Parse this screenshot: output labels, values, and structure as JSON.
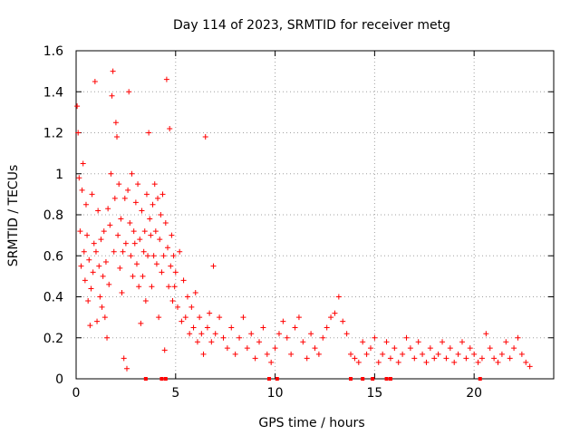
{
  "chart_data": {
    "type": "scatter",
    "title": "Day 114 of 2023, SRMTID for receiver metg",
    "xlabel": "GPS time / hours",
    "ylabel": "SRMTID / TECUs",
    "xlim": [
      0,
      24
    ],
    "ylim": [
      0,
      1.6
    ],
    "grid": true,
    "marker": "+",
    "marker_color": "#ff0000",
    "x_ticks": [
      0,
      5,
      10,
      15,
      20
    ],
    "x_tick_labels": [
      "0",
      "5",
      "10",
      "15",
      "20"
    ],
    "y_ticks": [
      0,
      0.2,
      0.4,
      0.6,
      0.8,
      1.0,
      1.2,
      1.4,
      1.6
    ],
    "y_tick_labels": [
      "0",
      "0.2",
      "0.4",
      "0.6",
      "0.8",
      "1",
      "1.2",
      "1.4",
      "1.6"
    ],
    "series": [
      {
        "name": "SRMTID",
        "color": "#ff0000",
        "points": [
          [
            0.05,
            1.33
          ],
          [
            0.1,
            1.2
          ],
          [
            0.15,
            0.98
          ],
          [
            0.2,
            0.72
          ],
          [
            0.25,
            0.55
          ],
          [
            0.3,
            0.92
          ],
          [
            0.35,
            1.05
          ],
          [
            0.4,
            0.62
          ],
          [
            0.45,
            0.48
          ],
          [
            0.5,
            0.85
          ],
          [
            0.55,
            0.7
          ],
          [
            0.6,
            0.38
          ],
          [
            0.65,
            0.58
          ],
          [
            0.7,
            0.26
          ],
          [
            0.75,
            0.44
          ],
          [
            0.8,
            0.9
          ],
          [
            0.85,
            0.52
          ],
          [
            0.9,
            0.66
          ],
          [
            0.95,
            1.45
          ],
          [
            1.0,
            0.62
          ],
          [
            1.05,
            0.28
          ],
          [
            1.1,
            0.82
          ],
          [
            1.15,
            0.55
          ],
          [
            1.2,
            0.4
          ],
          [
            1.25,
            0.68
          ],
          [
            1.3,
            0.35
          ],
          [
            1.35,
            0.5
          ],
          [
            1.4,
            0.72
          ],
          [
            1.45,
            0.3
          ],
          [
            1.5,
            0.57
          ],
          [
            1.55,
            0.2
          ],
          [
            1.6,
            0.83
          ],
          [
            1.65,
            0.46
          ],
          [
            1.7,
            0.75
          ],
          [
            1.75,
            1.0
          ],
          [
            1.8,
            1.38
          ],
          [
            1.85,
            1.5
          ],
          [
            1.9,
            0.62
          ],
          [
            1.95,
            0.88
          ],
          [
            2.0,
            1.25
          ],
          [
            2.05,
            1.18
          ],
          [
            2.1,
            0.7
          ],
          [
            2.15,
            0.95
          ],
          [
            2.2,
            0.54
          ],
          [
            2.25,
            0.78
          ],
          [
            2.3,
            0.42
          ],
          [
            2.35,
            0.62
          ],
          [
            2.4,
            0.1
          ],
          [
            2.45,
            0.88
          ],
          [
            2.5,
            0.66
          ],
          [
            2.55,
            0.05
          ],
          [
            2.6,
            0.92
          ],
          [
            2.65,
            1.4
          ],
          [
            2.7,
            0.76
          ],
          [
            2.75,
            0.6
          ],
          [
            2.8,
            1.0
          ],
          [
            2.85,
            0.5
          ],
          [
            2.9,
            0.72
          ],
          [
            2.95,
            0.66
          ],
          [
            3.0,
            0.86
          ],
          [
            3.05,
            0.56
          ],
          [
            3.1,
            0.95
          ],
          [
            3.15,
            0.45
          ],
          [
            3.2,
            0.68
          ],
          [
            3.25,
            0.27
          ],
          [
            3.3,
            0.82
          ],
          [
            3.35,
            0.5
          ],
          [
            3.4,
            0.62
          ],
          [
            3.45,
            0.72
          ],
          [
            3.5,
            0.38
          ],
          [
            3.55,
            0.9
          ],
          [
            3.6,
            0.6
          ],
          [
            3.65,
            1.2
          ],
          [
            3.7,
            0.78
          ],
          [
            3.75,
            0.7
          ],
          [
            3.8,
            0.45
          ],
          [
            3.85,
            0.85
          ],
          [
            3.9,
            0.6
          ],
          [
            3.95,
            0.95
          ],
          [
            4.0,
            0.72
          ],
          [
            4.05,
            0.56
          ],
          [
            4.1,
            0.88
          ],
          [
            4.15,
            0.3
          ],
          [
            4.2,
            0.68
          ],
          [
            4.25,
            0.8
          ],
          [
            4.3,
            0.52
          ],
          [
            4.35,
            0.9
          ],
          [
            4.4,
            0.6
          ],
          [
            4.45,
            0.14
          ],
          [
            4.5,
            0.76
          ],
          [
            4.55,
            1.46
          ],
          [
            4.6,
            0.64
          ],
          [
            4.65,
            0.45
          ],
          [
            4.7,
            1.22
          ],
          [
            4.75,
            0.55
          ],
          [
            4.8,
            0.7
          ],
          [
            4.85,
            0.38
          ],
          [
            4.9,
            0.6
          ],
          [
            4.95,
            0.45
          ],
          [
            5.0,
            0.52
          ],
          [
            5.1,
            0.35
          ],
          [
            5.2,
            0.62
          ],
          [
            5.3,
            0.28
          ],
          [
            5.4,
            0.48
          ],
          [
            5.5,
            0.3
          ],
          [
            5.6,
            0.4
          ],
          [
            5.7,
            0.22
          ],
          [
            5.8,
            0.35
          ],
          [
            5.9,
            0.25
          ],
          [
            6.0,
            0.42
          ],
          [
            6.1,
            0.18
          ],
          [
            6.2,
            0.3
          ],
          [
            6.3,
            0.22
          ],
          [
            6.4,
            0.12
          ],
          [
            6.5,
            1.18
          ],
          [
            6.6,
            0.25
          ],
          [
            6.7,
            0.32
          ],
          [
            6.8,
            0.18
          ],
          [
            6.9,
            0.55
          ],
          [
            7.0,
            0.22
          ],
          [
            7.2,
            0.3
          ],
          [
            7.4,
            0.2
          ],
          [
            7.6,
            0.15
          ],
          [
            7.8,
            0.25
          ],
          [
            8.0,
            0.12
          ],
          [
            8.2,
            0.2
          ],
          [
            8.4,
            0.3
          ],
          [
            8.6,
            0.15
          ],
          [
            8.8,
            0.22
          ],
          [
            9.0,
            0.1
          ],
          [
            9.2,
            0.18
          ],
          [
            9.4,
            0.25
          ],
          [
            9.6,
            0.12
          ],
          [
            9.8,
            0.08
          ],
          [
            10.0,
            0.15
          ],
          [
            10.2,
            0.22
          ],
          [
            10.4,
            0.28
          ],
          [
            10.6,
            0.2
          ],
          [
            10.8,
            0.12
          ],
          [
            11.0,
            0.25
          ],
          [
            11.2,
            0.3
          ],
          [
            11.4,
            0.18
          ],
          [
            11.6,
            0.1
          ],
          [
            11.8,
            0.22
          ],
          [
            12.0,
            0.15
          ],
          [
            12.2,
            0.12
          ],
          [
            12.4,
            0.2
          ],
          [
            12.6,
            0.25
          ],
          [
            12.8,
            0.3
          ],
          [
            13.0,
            0.32
          ],
          [
            13.2,
            0.4
          ],
          [
            13.4,
            0.28
          ],
          [
            13.6,
            0.22
          ],
          [
            13.8,
            0.12
          ],
          [
            14.0,
            0.1
          ],
          [
            14.2,
            0.08
          ],
          [
            14.4,
            0.18
          ],
          [
            14.6,
            0.12
          ],
          [
            14.8,
            0.15
          ],
          [
            15.0,
            0.2
          ],
          [
            15.2,
            0.08
          ],
          [
            15.4,
            0.12
          ],
          [
            15.6,
            0.18
          ],
          [
            15.8,
            0.1
          ],
          [
            16.0,
            0.15
          ],
          [
            16.2,
            0.08
          ],
          [
            16.4,
            0.12
          ],
          [
            16.6,
            0.2
          ],
          [
            16.8,
            0.15
          ],
          [
            17.0,
            0.1
          ],
          [
            17.2,
            0.18
          ],
          [
            17.4,
            0.12
          ],
          [
            17.6,
            0.08
          ],
          [
            17.8,
            0.15
          ],
          [
            18.0,
            0.1
          ],
          [
            18.2,
            0.12
          ],
          [
            18.4,
            0.18
          ],
          [
            18.6,
            0.1
          ],
          [
            18.8,
            0.15
          ],
          [
            19.0,
            0.08
          ],
          [
            19.2,
            0.12
          ],
          [
            19.4,
            0.18
          ],
          [
            19.6,
            0.1
          ],
          [
            19.8,
            0.15
          ],
          [
            20.0,
            0.12
          ],
          [
            20.2,
            0.08
          ],
          [
            20.4,
            0.1
          ],
          [
            20.6,
            0.22
          ],
          [
            20.8,
            0.15
          ],
          [
            21.0,
            0.1
          ],
          [
            21.2,
            0.08
          ],
          [
            21.4,
            0.12
          ],
          [
            21.6,
            0.18
          ],
          [
            21.8,
            0.1
          ],
          [
            22.0,
            0.15
          ],
          [
            22.2,
            0.2
          ],
          [
            22.4,
            0.12
          ],
          [
            22.6,
            0.08
          ],
          [
            22.8,
            0.06
          ]
        ]
      }
    ],
    "zero_markers": [
      3.5,
      4.3,
      4.5,
      9.7,
      10.1,
      13.8,
      14.4,
      14.9,
      15.6,
      15.8,
      20.3
    ]
  }
}
